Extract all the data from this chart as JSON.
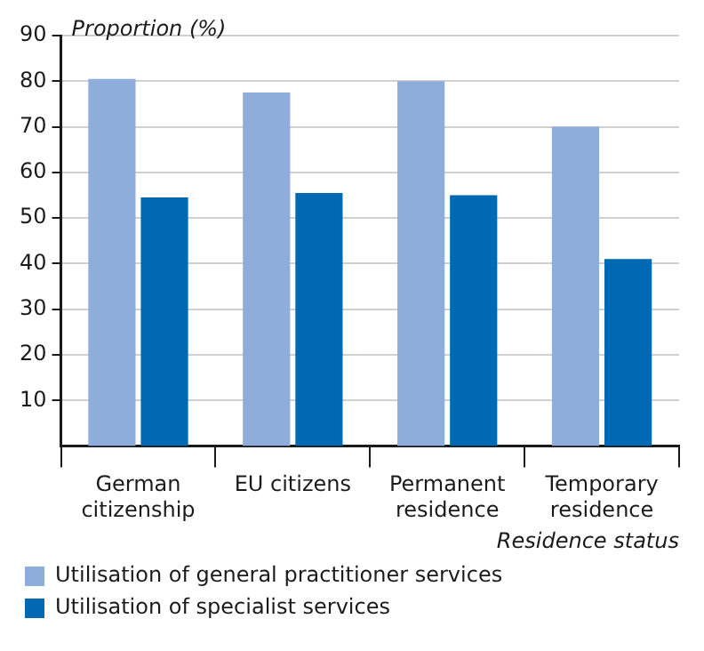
{
  "chart_data": {
    "type": "bar",
    "ylabel": "Proportion (%)",
    "xlabel": "Residence status",
    "categories": [
      "German citizenship",
      "EU citizens",
      "Permanent residence",
      "Temporary residence"
    ],
    "series": [
      {
        "name": "Utilisation of general practitioner services",
        "color": "#8eaddb",
        "values": [
          80.5,
          77.5,
          80,
          70
        ]
      },
      {
        "name": "Utilisation of specialist services",
        "color": "#0069b4",
        "values": [
          54.5,
          55.5,
          55,
          41
        ]
      }
    ],
    "ylim": [
      0,
      90
    ],
    "yticks": [
      10,
      20,
      30,
      40,
      50,
      60,
      70,
      80,
      90
    ],
    "grid": "y",
    "legend": "bottom"
  }
}
